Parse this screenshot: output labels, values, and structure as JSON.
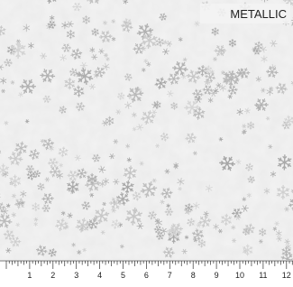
{
  "label": "METALLIC",
  "ruler": {
    "labels": [
      "1",
      "2",
      "3",
      "4",
      "5",
      "6",
      "7",
      "8",
      "9",
      "10",
      "11",
      "12"
    ]
  }
}
